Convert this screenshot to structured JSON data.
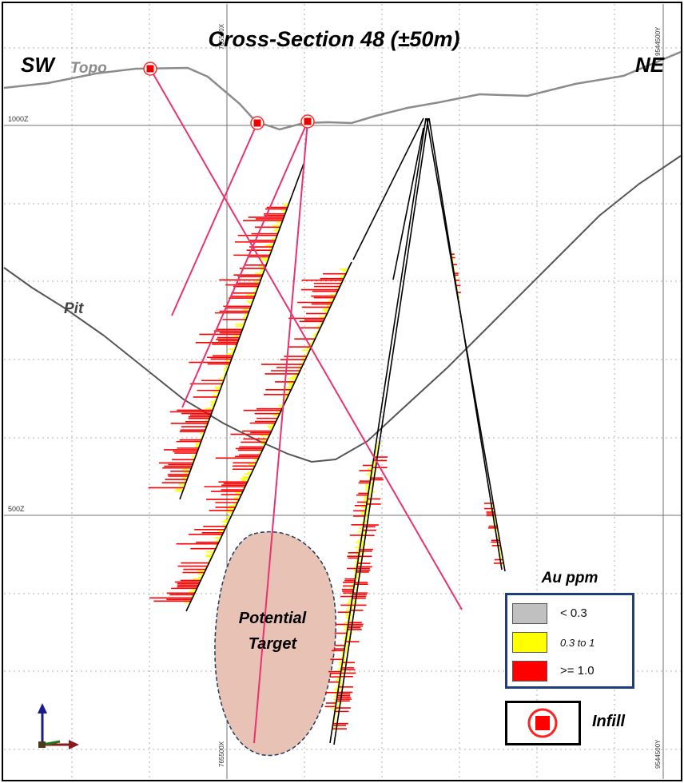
{
  "title": "Cross-Section 48 (±50m)",
  "directions": {
    "left": "SW",
    "right": "NE"
  },
  "labels": {
    "topo": "Topo",
    "pit": "Pit",
    "target": "Potential Target",
    "target_line1": "Potential",
    "target_line2": "Target"
  },
  "grid": {
    "elevation_1000": "1000Z",
    "elevation_500": "500Z",
    "easting_top": "765500X",
    "easting_bottom": "765500X",
    "northing_top": "9544500Y",
    "northing_bottom": "9544500Y"
  },
  "legend": {
    "title": "Au ppm",
    "items": [
      {
        "label": "< 0.3",
        "color": "#c0c0c0"
      },
      {
        "label": "0.3 to 1",
        "color": "#ffff00"
      },
      {
        "label": ">= 1.0",
        "color": "#ff0000"
      }
    ]
  },
  "infill": {
    "label": "Infill",
    "color": "#ff0000"
  },
  "colors": {
    "infill_hole": "#e8336f",
    "existing_hole": "#000000",
    "topo_line": "#8c8c8c",
    "pit_line": "#555555",
    "target_fill": "#e8c2b4",
    "target_border": "#1f3d5c",
    "grid": "#808080"
  }
}
